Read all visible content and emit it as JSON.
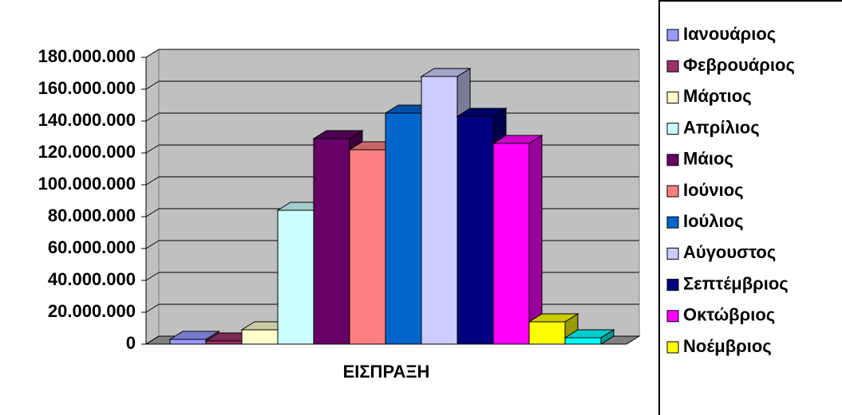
{
  "chart_data": {
    "type": "bar3d",
    "categories": [
      "ΕΙΣΠΡΑΞΗ"
    ],
    "series": [
      {
        "name": "Ιανουάριος",
        "color": "#9999ff",
        "values": [
          3000000
        ]
      },
      {
        "name": "Φεβρουάριος",
        "color": "#993366",
        "values": [
          2000000
        ]
      },
      {
        "name": "Μάρτιος",
        "color": "#ffffcc",
        "values": [
          9000000
        ]
      },
      {
        "name": "Απρίλιος",
        "color": "#ccffff",
        "values": [
          84000000
        ]
      },
      {
        "name": "Μάιος",
        "color": "#660066",
        "values": [
          129000000
        ]
      },
      {
        "name": "Ιούνιος",
        "color": "#ff8080",
        "values": [
          122000000
        ]
      },
      {
        "name": "Ιούλιος",
        "color": "#0066cc",
        "values": [
          145000000
        ]
      },
      {
        "name": "Αύγουστος",
        "color": "#ccccff",
        "values": [
          168000000
        ]
      },
      {
        "name": "Σεπτέμβριος",
        "color": "#000080",
        "values": [
          143000000
        ]
      },
      {
        "name": "Οκτώβριος",
        "color": "#ff00ff",
        "values": [
          126000000
        ]
      },
      {
        "name": "Νοέμβριος",
        "color": "#ffff00",
        "values": [
          14000000
        ]
      },
      {
        "name": null,
        "color": "#00ffff",
        "values": [
          4000000
        ]
      }
    ],
    "ylim": [
      0,
      180000000
    ],
    "yticks": [
      0,
      {
        "value": 20000000,
        "label": "20.000.000"
      },
      {
        "value": 40000000,
        "label": "40.000.000"
      },
      {
        "value": 60000000,
        "label": "60.000.000"
      },
      {
        "value": 80000000,
        "label": "80.000.000"
      },
      {
        "value": 100000000,
        "label": "100.000.000"
      },
      {
        "value": 120000000,
        "label": "120.000.000"
      },
      {
        "value": 140000000,
        "label": "140.000.000"
      },
      {
        "value": 160000000,
        "label": "160.000.000"
      },
      {
        "value": 180000000,
        "label": "180.000.000"
      }
    ],
    "grid": true,
    "legend": "right"
  }
}
